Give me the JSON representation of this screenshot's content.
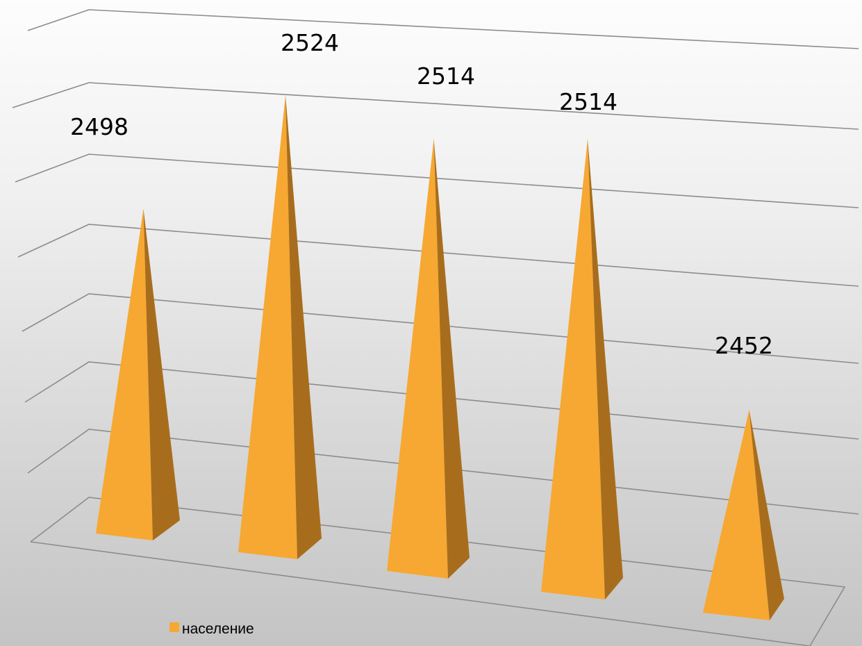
{
  "chart_data": {
    "type": "bar",
    "style": "3d-pyramid",
    "categories": [
      "",
      "",
      "",
      "",
      ""
    ],
    "series": [
      {
        "name": "население",
        "values": [
          2498,
          2524,
          2514,
          2514,
          2452
        ],
        "color": "#f6a832",
        "shade_color": "#a86d1c"
      }
    ],
    "value_labels": [
      "2498",
      "2524",
      "2514",
      "2514",
      "2452"
    ],
    "axis_labels_visible": false,
    "grid": true,
    "legend": {
      "position": "bottom-left",
      "label": "население"
    }
  }
}
